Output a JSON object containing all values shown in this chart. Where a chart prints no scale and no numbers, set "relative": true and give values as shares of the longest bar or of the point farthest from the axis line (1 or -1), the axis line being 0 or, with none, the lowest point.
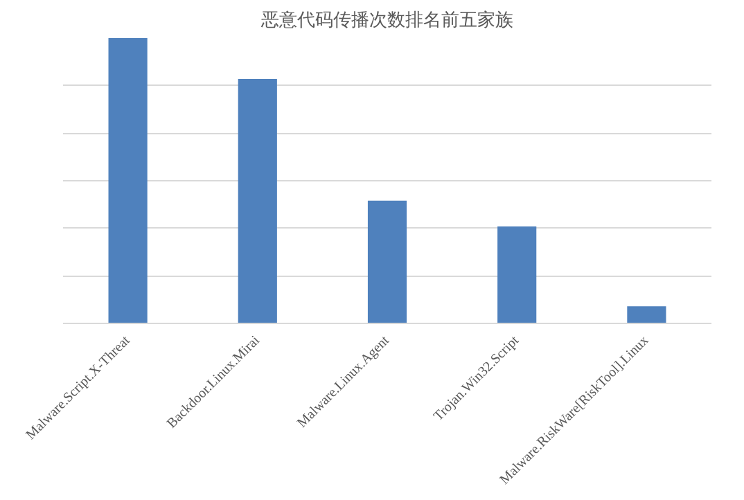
{
  "chart_data": {
    "type": "bar",
    "title": "恶意代码传播次数排名前五家族",
    "categories": [
      "Malware.Script.X-Threat",
      "Backdoor.Linux.Mirai",
      "Malware.Linux.Agent",
      "Trojan.Win32.Script",
      "Malware.RiskWare[RiskTool].Linux"
    ],
    "values": [
      1,
      0.857,
      0.43,
      0.34,
      0.06
    ],
    "color": "#4f81bd",
    "relative": true,
    "grid": true
  }
}
